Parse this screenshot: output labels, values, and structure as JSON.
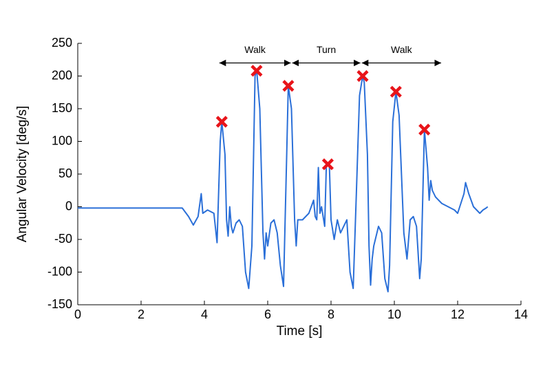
{
  "chart_data": {
    "type": "line",
    "xlabel": "Time [s]",
    "ylabel": "Angular Velocity [deg/s]",
    "xlim": [
      0,
      14
    ],
    "ylim": [
      -150,
      250
    ],
    "xticks": [
      0,
      2,
      4,
      6,
      8,
      10,
      12,
      14
    ],
    "yticks": [
      -150,
      -100,
      -50,
      0,
      50,
      100,
      150,
      200,
      250
    ],
    "series": [
      {
        "type": "line",
        "color": "#2a6fd8",
        "x": [
          0,
          1,
          2,
          3,
          3.3,
          3.5,
          3.65,
          3.8,
          3.9,
          3.95,
          4.1,
          4.3,
          4.4,
          4.5,
          4.55,
          4.65,
          4.7,
          4.75,
          4.8,
          4.85,
          4.9,
          5.0,
          5.1,
          5.2,
          5.3,
          5.4,
          5.5,
          5.6,
          5.65,
          5.75,
          5.85,
          5.9,
          5.95,
          6.0,
          6.1,
          6.2,
          6.3,
          6.4,
          6.5,
          6.6,
          6.65,
          6.75,
          6.85,
          6.9,
          6.95,
          7.1,
          7.3,
          7.45,
          7.5,
          7.55,
          7.6,
          7.65,
          7.7,
          7.8,
          7.85,
          7.9,
          7.95,
          8.0,
          8.1,
          8.2,
          8.3,
          8.5,
          8.6,
          8.7,
          8.8,
          8.9,
          9.0,
          9.05,
          9.15,
          9.2,
          9.25,
          9.3,
          9.35,
          9.4,
          9.5,
          9.6,
          9.7,
          9.8,
          9.85,
          9.95,
          10.05,
          10.15,
          10.3,
          10.4,
          10.5,
          10.6,
          10.7,
          10.8,
          10.85,
          10.95,
          11.05,
          11.1,
          11.15,
          11.2,
          11.3,
          11.5,
          11.7,
          11.9,
          12.0,
          12.1,
          12.2,
          12.25,
          12.35,
          12.5,
          12.7,
          12.8,
          12.9,
          12.95
        ],
        "values": [
          -2,
          -2,
          -2,
          -2,
          -2,
          -15,
          -28,
          -15,
          20,
          -10,
          -5,
          -10,
          -55,
          100,
          130,
          80,
          -20,
          -45,
          0,
          -30,
          -40,
          -25,
          -20,
          -30,
          -100,
          -125,
          -60,
          200,
          210,
          150,
          -40,
          -80,
          -40,
          -60,
          -25,
          -20,
          -40,
          -90,
          -122,
          80,
          185,
          150,
          -20,
          -60,
          -20,
          -20,
          -10,
          10,
          -15,
          -20,
          60,
          -10,
          0,
          -30,
          60,
          65,
          60,
          -20,
          -50,
          -20,
          -40,
          -20,
          -100,
          -125,
          20,
          170,
          200,
          190,
          80,
          -60,
          -120,
          -80,
          -60,
          -50,
          -30,
          -40,
          -110,
          -130,
          -90,
          130,
          176,
          140,
          -40,
          -80,
          -20,
          -15,
          -30,
          -110,
          -80,
          118,
          60,
          10,
          40,
          25,
          15,
          5,
          0,
          -5,
          -10,
          5,
          20,
          37,
          20,
          0,
          -10,
          -5,
          -2,
          0
        ]
      },
      {
        "type": "scatter",
        "color": "#e8141a",
        "x": [
          4.55,
          5.65,
          6.65,
          7.9,
          9.0,
          10.05,
          10.95
        ],
        "values": [
          130,
          208,
          185,
          65,
          200,
          176,
          118
        ]
      }
    ],
    "annotations": [
      {
        "text": "Walk",
        "x": [
          4.45,
          6.75
        ],
        "y": 220
      },
      {
        "text": "Turn",
        "x": [
          6.75,
          8.95
        ],
        "y": 220
      },
      {
        "text": "Walk",
        "x": [
          8.95,
          11.5
        ],
        "y": 220
      }
    ]
  }
}
